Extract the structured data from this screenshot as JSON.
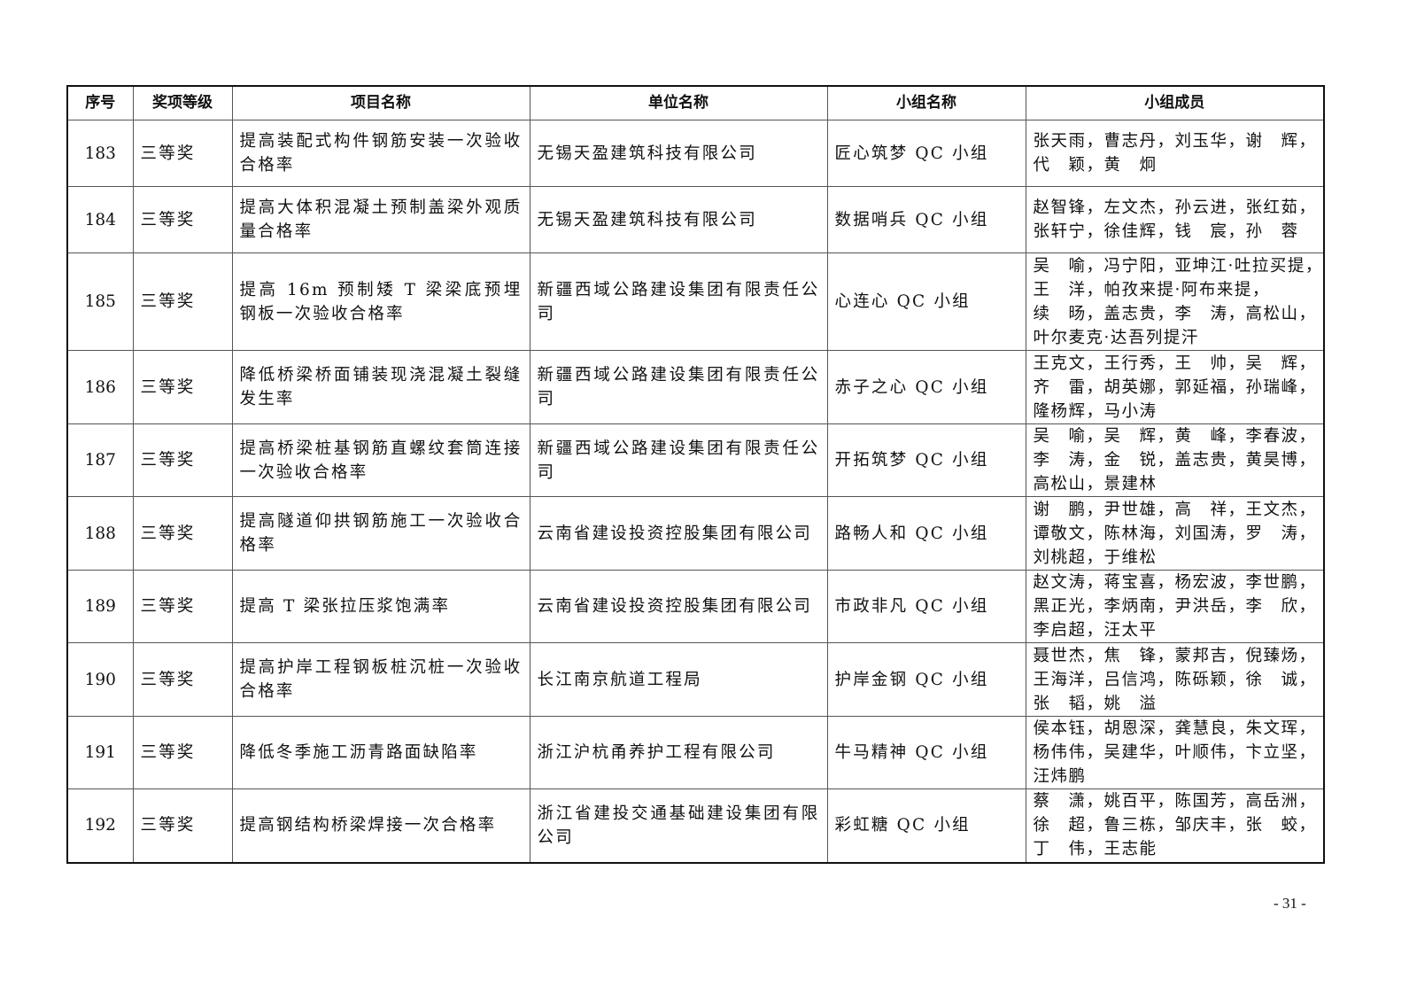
{
  "table": {
    "headers": [
      "序号",
      "奖项等级",
      "项目名称",
      "单位名称",
      "小组名称",
      "小组成员"
    ],
    "rows": [
      {
        "no": "183",
        "level": "三等奖",
        "project": "提高装配式构件钢筋安装一次验收合格率",
        "unit": "无锡天盈建筑科技有限公司",
        "group": "匠心筑梦 QC 小组",
        "members": [
          "张天雨，曹志丹，刘玉华，谢　辉，",
          "代　颖，黄　炯"
        ]
      },
      {
        "no": "184",
        "level": "三等奖",
        "project": "提高大体积混凝土预制盖梁外观质量合格率",
        "unit": "无锡天盈建筑科技有限公司",
        "group": "数据哨兵 QC 小组",
        "members": [
          "赵智锋，左文杰，孙云进，张红茹，",
          "张轩宁，徐佳辉，钱　宸，孙　蓉"
        ]
      },
      {
        "no": "185",
        "level": "三等奖",
        "project": "提高 16m 预制矮 T 梁梁底预埋钢板一次验收合格率",
        "unit": "新疆西域公路建设集团有限责任公司",
        "group": "心连心 QC 小组",
        "members": [
          "吴　喻，冯宁阳，亚坤江·吐拉买提，",
          "王　洋，帕孜来提·阿布来提，",
          "续　旸，盖志贵，李　涛，高松山，",
          "叶尔麦克·达吾列提汗"
        ]
      },
      {
        "no": "186",
        "level": "三等奖",
        "project": "降低桥梁桥面铺装现浇混凝土裂缝发生率",
        "unit": "新疆西域公路建设集团有限责任公司",
        "group": "赤子之心 QC 小组",
        "members": [
          "王克文，王行秀，王　帅，吴　辉，",
          "齐　雷，胡英娜，郭延福，孙瑞峰，",
          "隆杨辉，马小涛"
        ]
      },
      {
        "no": "187",
        "level": "三等奖",
        "project": "提高桥梁桩基钢筋直螺纹套筒连接一次验收合格率",
        "unit": "新疆西域公路建设集团有限责任公司",
        "group": "开拓筑梦 QC 小组",
        "members": [
          "吴　喻，吴　辉，黄　峰，李春波，",
          "李　涛，金　锐，盖志贵，黄昊博，",
          "高松山，景建林"
        ]
      },
      {
        "no": "188",
        "level": "三等奖",
        "project": "提高隧道仰拱钢筋施工一次验收合格率",
        "unit": "云南省建设投资控股集团有限公司",
        "group": "路畅人和 QC 小组",
        "members": [
          "谢　鹏，尹世雄，高　祥，王文杰，",
          "谭敬文，陈林海，刘国涛，罗　涛，",
          "刘桃超，于维松"
        ]
      },
      {
        "no": "189",
        "level": "三等奖",
        "project": "提高 T 梁张拉压浆饱满率",
        "unit": "云南省建设投资控股集团有限公司",
        "group": "市政非凡 QC 小组",
        "members": [
          "赵文涛，蒋宝喜，杨宏波，李世鹏，",
          "黑正光，李炳南，尹洪岳，李　欣，",
          "李启超，汪太平"
        ]
      },
      {
        "no": "190",
        "level": "三等奖",
        "project": "提高护岸工程钢板桩沉桩一次验收合格率",
        "unit": "长江南京航道工程局",
        "group": "护岸金钢 QC 小组",
        "members": [
          "聂世杰，焦　锋，蒙邦吉，倪臻炀，",
          "王海洋，吕信鸿，陈砾颖，徐　诚，",
          "张　韬，姚　溢"
        ]
      },
      {
        "no": "191",
        "level": "三等奖",
        "project": "降低冬季施工沥青路面缺陷率",
        "unit": "浙江沪杭甬养护工程有限公司",
        "group": "牛马精神 QC 小组",
        "members": [
          "侯本钰，胡恩深，龚慧良，朱文珲，",
          "杨伟伟，吴建华，叶顺伟，卞立坚，",
          "汪炜鹏"
        ]
      },
      {
        "no": "192",
        "level": "三等奖",
        "project": "提高钢结构桥梁焊接一次合格率",
        "unit": "浙江省建投交通基础建设集团有限公司",
        "group": "彩虹糖 QC 小组",
        "members": [
          "蔡　潇，姚百平，陈国芳，高岳洲，",
          "徐　超，鲁三栋，邹庆丰，张　蛟，",
          "丁　伟，王志能"
        ]
      }
    ]
  },
  "footer": {
    "page_number": "- 31 -"
  }
}
